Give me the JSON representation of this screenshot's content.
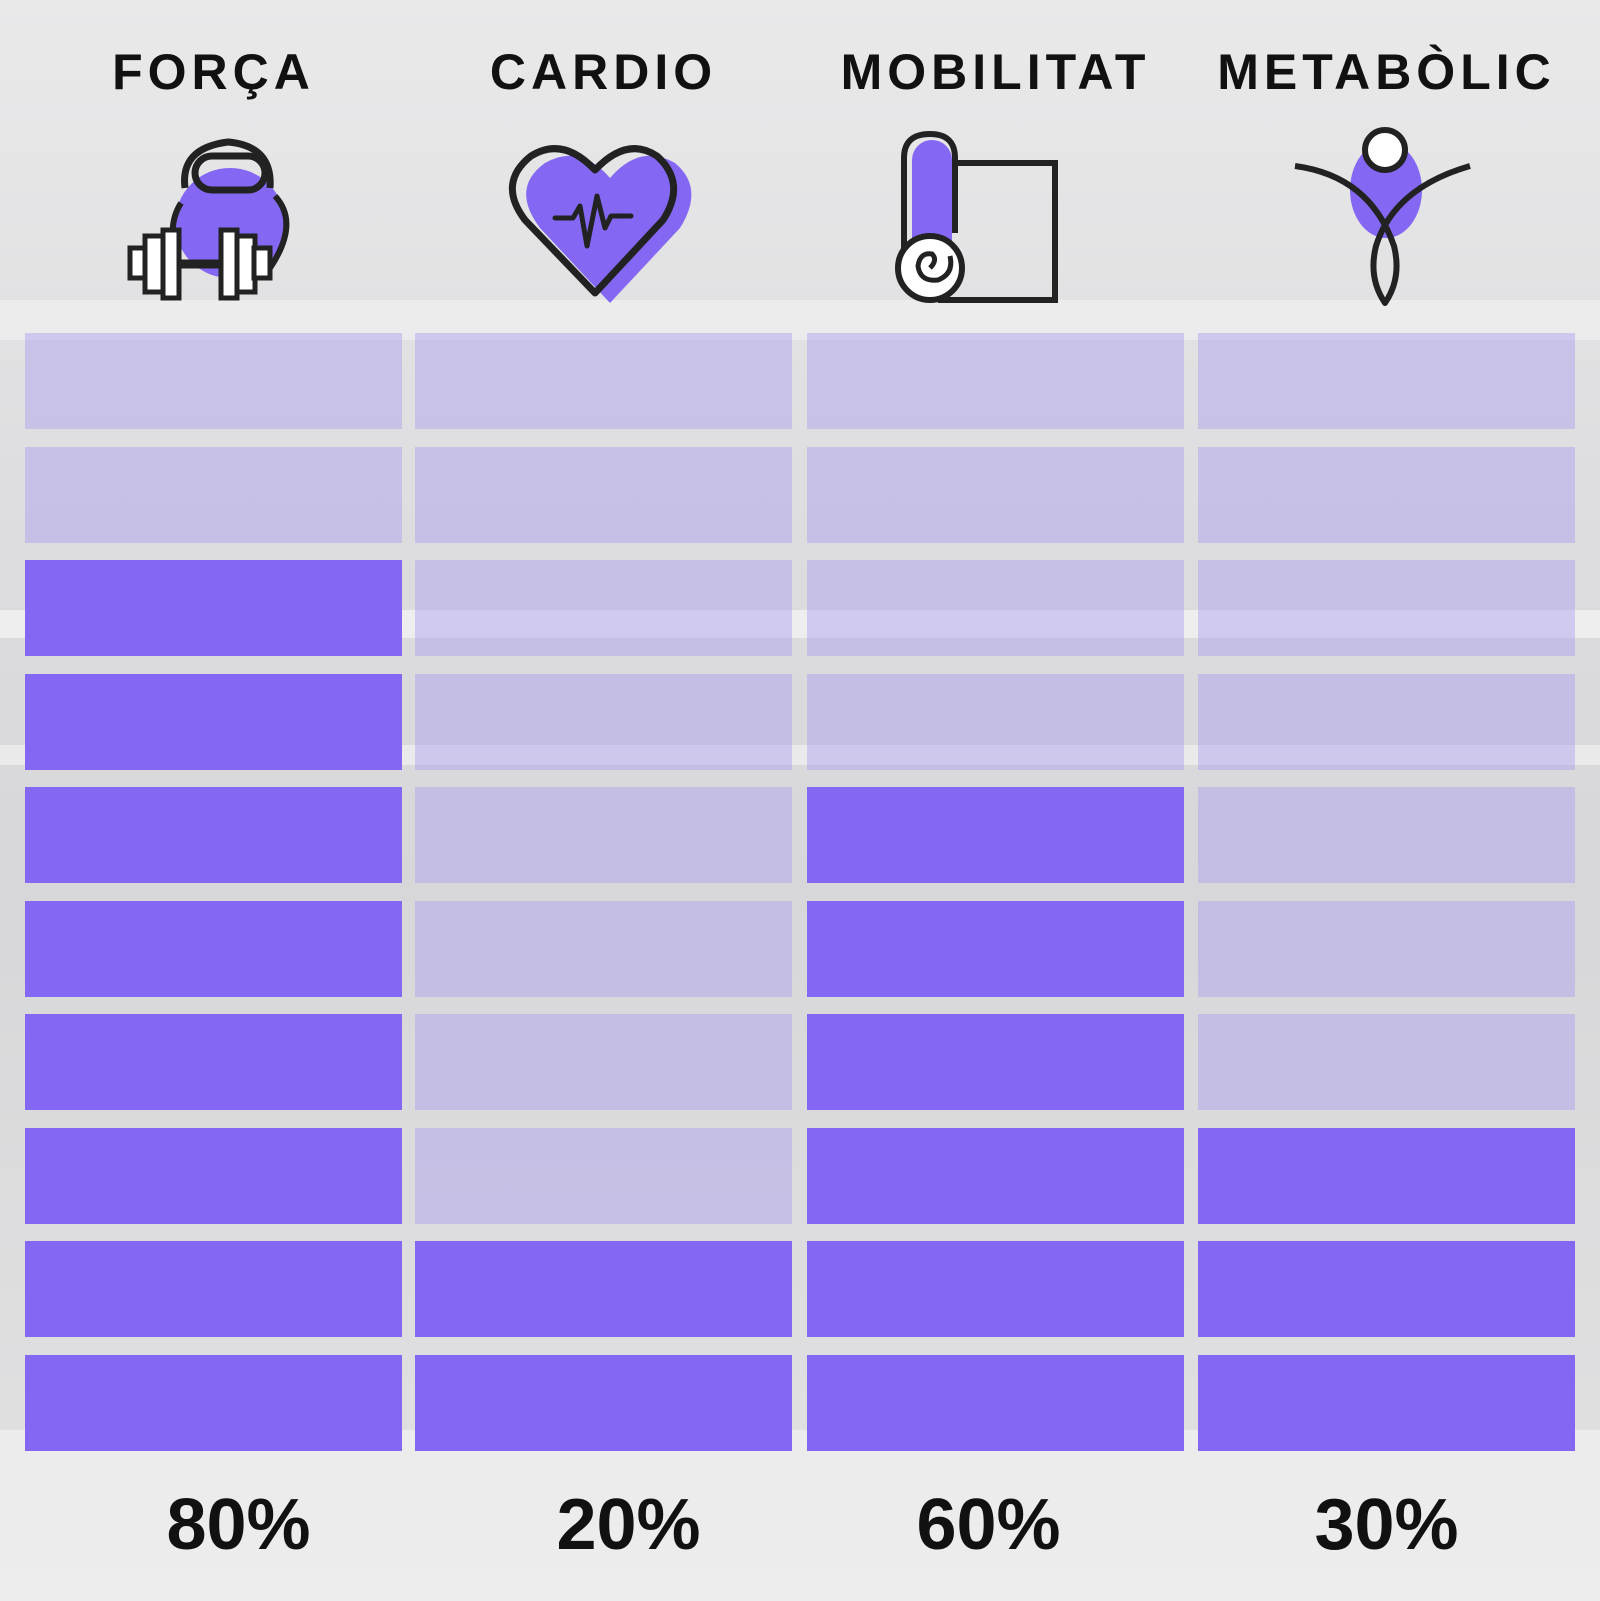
{
  "colors": {
    "accent": "#8468f4",
    "track": "#c9c0ee",
    "text": "#111111"
  },
  "chart_data": {
    "type": "bar",
    "orientation": "vertical",
    "segments_per_bar": 10,
    "unit": "%",
    "categories": [
      "FORÇA",
      "CARDIO",
      "MOBILITAT",
      "METABÒLIC"
    ],
    "values": [
      80,
      20,
      60,
      30
    ],
    "value_labels": [
      "80%",
      "20%",
      "60%",
      "30%"
    ],
    "ylim": [
      0,
      100
    ],
    "icons": [
      "kettlebell-dumbbell-icon",
      "heart-pulse-icon",
      "yoga-mat-icon",
      "stretching-person-icon"
    ]
  }
}
